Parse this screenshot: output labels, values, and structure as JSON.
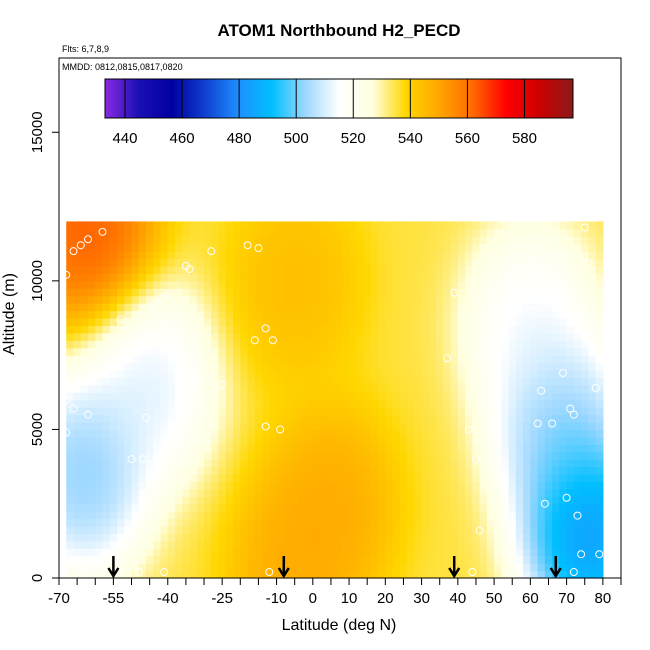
{
  "chart_data": {
    "type": "heatmap",
    "title": "ATOM1 Northbound H2_PECD",
    "flights_note": "Flts: 6,7,8,9",
    "dates_note": "MMDD: 0812,0815,0817,0820",
    "xlabel": "Latitude (deg N)",
    "ylabel": "Altitude (m)",
    "xlim": [
      -70,
      85
    ],
    "ylim": [
      0,
      17500
    ],
    "xticks": [
      -70,
      -55,
      -40,
      -25,
      -10,
      0,
      10,
      20,
      30,
      40,
      50,
      60,
      70,
      80
    ],
    "yticks": [
      0,
      5000,
      10000,
      15000
    ],
    "colorbar": {
      "range": [
        433,
        597
      ],
      "ticks": [
        440,
        460,
        480,
        500,
        520,
        540,
        560,
        580
      ],
      "colors": [
        "#8a2be2",
        "#1a0fb5",
        "#0000a0",
        "#1040d0",
        "#1e90ff",
        "#00bfff",
        "#9fd8ff",
        "#ffffff",
        "#ffffe0",
        "#ffd700",
        "#ffa500",
        "#ff6a00",
        "#ff0000",
        "#cc0000",
        "#8b1a1a"
      ]
    },
    "field": {
      "lat_range": [
        -68,
        80
      ],
      "alt_range": [
        0,
        12000
      ],
      "surface_h2_ppb": 515,
      "background_h2_ppb": 535,
      "features": [
        {
          "name": "southern high-altitude maximum",
          "lat": -62,
          "alt": 11800,
          "value": 572
        },
        {
          "name": "southern mid-troposphere low",
          "lat": -63,
          "alt": 3500,
          "value": 492
        },
        {
          "name": "southern mid-troposphere moderate low",
          "lat": -45,
          "alt": 6500,
          "value": 505
        },
        {
          "name": "tropical mid-altitude maximum",
          "lat": 5,
          "alt": 2500,
          "value": 552
        },
        {
          "name": "tropical upper maximum",
          "lat": -5,
          "alt": 10000,
          "value": 547
        },
        {
          "name": "tropical surface maximum",
          "lat": -5,
          "alt": 200,
          "value": 552
        },
        {
          "name": "northern high-latitude surface minimum",
          "lat": 76,
          "alt": 1500,
          "value": 468
        },
        {
          "name": "northern mid-latitude low",
          "lat": 68,
          "alt": 5000,
          "value": 492
        },
        {
          "name": "northern upper low",
          "lat": 60,
          "alt": 8500,
          "value": 508
        }
      ]
    },
    "flight_points": [
      {
        "lat": -68,
        "alt": 10200
      },
      {
        "lat": -66,
        "alt": 11000
      },
      {
        "lat": -64,
        "alt": 11200
      },
      {
        "lat": -62,
        "alt": 11400
      },
      {
        "lat": -58,
        "alt": 11650
      },
      {
        "lat": -68,
        "alt": 6000
      },
      {
        "lat": -66,
        "alt": 5700
      },
      {
        "lat": -62,
        "alt": 5500
      },
      {
        "lat": -68,
        "alt": 4900
      },
      {
        "lat": -54,
        "alt": 6900
      },
      {
        "lat": -53,
        "alt": 8700
      },
      {
        "lat": -50,
        "alt": 4000
      },
      {
        "lat": -47,
        "alt": 4000
      },
      {
        "lat": -46,
        "alt": 5400
      },
      {
        "lat": -44,
        "alt": 9200
      },
      {
        "lat": -42,
        "alt": 9400
      },
      {
        "lat": -40,
        "alt": 9500
      },
      {
        "lat": -35,
        "alt": 10500
      },
      {
        "lat": -34,
        "alt": 10400
      },
      {
        "lat": -33,
        "alt": 6900
      },
      {
        "lat": -32,
        "alt": 6600
      },
      {
        "lat": -28,
        "alt": 11000
      },
      {
        "lat": -25,
        "alt": 6500
      },
      {
        "lat": -18,
        "alt": 11200
      },
      {
        "lat": -15,
        "alt": 11100
      },
      {
        "lat": -16,
        "alt": 8000
      },
      {
        "lat": -13,
        "alt": 8400
      },
      {
        "lat": -11,
        "alt": 8000
      },
      {
        "lat": -13,
        "alt": 5100
      },
      {
        "lat": -9,
        "alt": 5000
      },
      {
        "lat": -38,
        "alt": 5600
      },
      {
        "lat": -63,
        "alt": 300
      },
      {
        "lat": -58,
        "alt": 300
      },
      {
        "lat": -53,
        "alt": 200
      },
      {
        "lat": -48,
        "alt": 200
      },
      {
        "lat": -41,
        "alt": 200
      },
      {
        "lat": -12,
        "alt": 200
      },
      {
        "lat": 37,
        "alt": 7400
      },
      {
        "lat": 39,
        "alt": 9600
      },
      {
        "lat": 43,
        "alt": 5000
      },
      {
        "lat": 45,
        "alt": 4000
      },
      {
        "lat": 46,
        "alt": 1600
      },
      {
        "lat": 48,
        "alt": 5800
      },
      {
        "lat": 52,
        "alt": 9200
      },
      {
        "lat": 54,
        "alt": 9100
      },
      {
        "lat": 56,
        "alt": 9000
      },
      {
        "lat": 60,
        "alt": 9000
      },
      {
        "lat": 62,
        "alt": 5200
      },
      {
        "lat": 63,
        "alt": 6300
      },
      {
        "lat": 64,
        "alt": 2500
      },
      {
        "lat": 66,
        "alt": 5200
      },
      {
        "lat": 68,
        "alt": 10900
      },
      {
        "lat": 69,
        "alt": 6900
      },
      {
        "lat": 70,
        "alt": 2700
      },
      {
        "lat": 71,
        "alt": 5700
      },
      {
        "lat": 72,
        "alt": 5500
      },
      {
        "lat": 73,
        "alt": 2100
      },
      {
        "lat": 74,
        "alt": 800
      },
      {
        "lat": 75,
        "alt": 11800
      },
      {
        "lat": 76,
        "alt": 10600
      },
      {
        "lat": 78,
        "alt": 6400
      },
      {
        "lat": 79,
        "alt": 800
      },
      {
        "lat": 72,
        "alt": 200
      },
      {
        "lat": 44,
        "alt": 200
      }
    ],
    "arrows_lat": [
      -55,
      -8,
      39,
      67
    ]
  }
}
